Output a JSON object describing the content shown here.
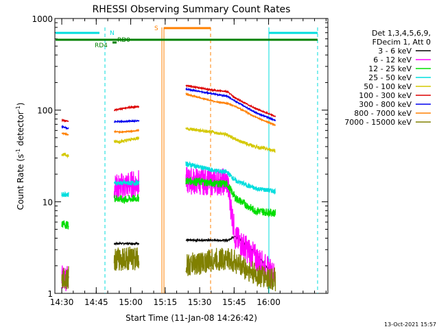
{
  "chart_data": {
    "type": "line",
    "title": "RHESSI Observing Summary Count Rates",
    "xlabel": "Start Time (11-Jan-08 14:26:42)",
    "ylabel_main": "Count Rate (s",
    "ylabel_sup1": "-1",
    "ylabel_mid": " detector",
    "ylabel_sup2": "-1",
    "ylabel_end": ")",
    "y_scale": "log",
    "ylim": [
      1,
      1000
    ],
    "y_ticks": [
      1,
      10,
      100,
      1000
    ],
    "y_tick_labels": [
      "1",
      "10",
      "100",
      "1000"
    ],
    "xlim_minutes": [
      14.45,
      16.43
    ],
    "x_ticks": [
      {
        "t": 14.5,
        "label": "14:30"
      },
      {
        "t": 14.75,
        "label": "14:45"
      },
      {
        "t": 15.0,
        "label": "15:00"
      },
      {
        "t": 15.25,
        "label": "15:15"
      },
      {
        "t": 15.5,
        "label": "15:30"
      },
      {
        "t": 15.75,
        "label": "15:45"
      },
      {
        "t": 16.0,
        "label": "16:00"
      }
    ],
    "legend_header": [
      "Det 1,3,4,5,6,9,",
      "FDecim 1, Att 0"
    ],
    "series": [
      {
        "name": "3 - 6 keV",
        "color": "#000000",
        "values": [
          [
            14.5,
            1.5
          ],
          [
            14.55,
            1.5
          ],
          [
            14.88,
            3.5
          ],
          [
            14.95,
            3.5
          ],
          [
            15.06,
            3.5
          ],
          [
            15.4,
            3.8
          ],
          [
            15.6,
            3.8
          ],
          [
            15.7,
            3.8
          ],
          [
            15.76,
            4.2
          ],
          [
            15.9,
            2.8
          ],
          [
            16.05,
            1.5
          ]
        ]
      },
      {
        "name": "6 - 12 keV",
        "color": "#ff00ff",
        "values": [
          [
            14.5,
            1.5
          ],
          [
            14.55,
            1.5
          ],
          [
            14.88,
            14.0
          ],
          [
            14.95,
            15.0
          ],
          [
            15.06,
            16.0
          ],
          [
            15.4,
            17.0
          ],
          [
            15.6,
            16.5
          ],
          [
            15.7,
            16.5
          ],
          [
            15.76,
            4.0
          ],
          [
            15.9,
            2.5
          ],
          [
            16.05,
            1.5
          ]
        ]
      },
      {
        "name": "12 - 25 keV",
        "color": "#00dd00",
        "values": [
          [
            14.5,
            5.8
          ],
          [
            14.55,
            5.5
          ],
          [
            14.88,
            11.0
          ],
          [
            14.95,
            10.5
          ],
          [
            15.06,
            11.0
          ],
          [
            15.4,
            17.0
          ],
          [
            15.6,
            16.0
          ],
          [
            15.7,
            15.5
          ],
          [
            15.76,
            11.0
          ],
          [
            15.9,
            8.0
          ],
          [
            16.05,
            7.5
          ]
        ]
      },
      {
        "name": "25 - 50 keV",
        "color": "#00dddd",
        "values": [
          [
            14.5,
            12.0
          ],
          [
            14.55,
            12.0
          ],
          [
            14.88,
            16.0
          ],
          [
            14.95,
            16.0
          ],
          [
            15.06,
            16.0
          ],
          [
            15.4,
            26.0
          ],
          [
            15.6,
            22.0
          ],
          [
            15.7,
            21.0
          ],
          [
            15.76,
            17.0
          ],
          [
            15.9,
            14.0
          ],
          [
            16.05,
            13.0
          ]
        ]
      },
      {
        "name": "50 - 100 keV",
        "color": "#d4c800",
        "values": [
          [
            14.5,
            33.0
          ],
          [
            14.55,
            32.0
          ],
          [
            14.88,
            45.0
          ],
          [
            14.95,
            46.0
          ],
          [
            15.06,
            50.0
          ],
          [
            15.4,
            63.0
          ],
          [
            15.6,
            57.0
          ],
          [
            15.7,
            54.0
          ],
          [
            15.76,
            48.0
          ],
          [
            15.9,
            40.0
          ],
          [
            16.05,
            36.0
          ]
        ]
      },
      {
        "name": "100 - 300 keV",
        "color": "#dd0000",
        "values": [
          [
            14.5,
            78.0
          ],
          [
            14.55,
            75.0
          ],
          [
            14.88,
            100.0
          ],
          [
            14.95,
            105.0
          ],
          [
            15.06,
            110.0
          ],
          [
            15.4,
            185.0
          ],
          [
            15.6,
            165.0
          ],
          [
            15.7,
            160.0
          ],
          [
            15.76,
            135.0
          ],
          [
            15.9,
            105.0
          ],
          [
            16.05,
            85.0
          ]
        ]
      },
      {
        "name": "300 - 800 keV",
        "color": "#0000ee",
        "values": [
          [
            14.5,
            66.0
          ],
          [
            14.55,
            63.0
          ],
          [
            14.88,
            75.0
          ],
          [
            14.95,
            75.0
          ],
          [
            15.06,
            77.0
          ],
          [
            15.4,
            170.0
          ],
          [
            15.6,
            150.0
          ],
          [
            15.7,
            142.0
          ],
          [
            15.76,
            125.0
          ],
          [
            15.9,
            95.0
          ],
          [
            16.05,
            77.0
          ]
        ]
      },
      {
        "name": "800 - 7000 keV",
        "color": "#ff8000",
        "values": [
          [
            14.5,
            56.0
          ],
          [
            14.55,
            54.0
          ],
          [
            14.88,
            58.0
          ],
          [
            14.95,
            58.0
          ],
          [
            15.06,
            60.0
          ],
          [
            15.4,
            150.0
          ],
          [
            15.6,
            125.0
          ],
          [
            15.7,
            118.0
          ],
          [
            15.76,
            110.0
          ],
          [
            15.9,
            85.0
          ],
          [
            16.05,
            68.0
          ]
        ]
      },
      {
        "name": "7000 - 15000 keV",
        "color": "#808000",
        "values": [
          [
            14.5,
            1.5
          ],
          [
            14.55,
            1.5
          ],
          [
            14.88,
            2.3
          ],
          [
            14.95,
            2.4
          ],
          [
            15.06,
            2.4
          ],
          [
            15.4,
            2.0
          ],
          [
            15.6,
            2.3
          ],
          [
            15.7,
            2.4
          ],
          [
            15.76,
            2.2
          ],
          [
            15.9,
            1.6
          ],
          [
            16.05,
            1.4
          ]
        ]
      }
    ],
    "annotations": {
      "N": "N",
      "S": "S",
      "RD0": "RD0",
      "RD4": "RD4"
    },
    "footer_date": "13-Oct-2021 15:57",
    "colors": {
      "night_lines": "#00dddd",
      "saa_lines": "#ff8000",
      "decimation_bar": "#008000"
    }
  }
}
